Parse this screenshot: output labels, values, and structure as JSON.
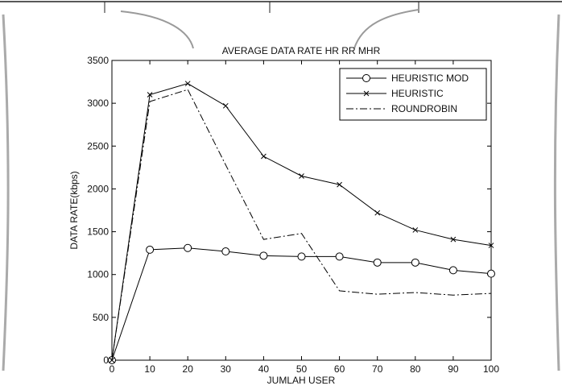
{
  "chart_data": {
    "type": "line",
    "title": "AVERAGE DATA RATE HR RR MHR",
    "xlabel": "JUMLAH USER",
    "ylabel": "DATA RATE(kbps)",
    "x": [
      0,
      10,
      20,
      30,
      40,
      50,
      60,
      70,
      80,
      90,
      100
    ],
    "xlim": [
      0,
      100
    ],
    "ylim": [
      0,
      3500
    ],
    "xticks": [
      "0",
      "10",
      "20",
      "30",
      "40",
      "50",
      "60",
      "70",
      "80",
      "90",
      "100"
    ],
    "yticks": [
      "0",
      "500",
      "1000",
      "1500",
      "2000",
      "2500",
      "3000",
      "3500"
    ],
    "grid": false,
    "legend_position": "top-right",
    "series": [
      {
        "name": "HEURISTIC MOD",
        "marker": "circle",
        "line_style": "solid",
        "values": [
          0,
          1290,
          1310,
          1270,
          1220,
          1210,
          1210,
          1140,
          1140,
          1050,
          1010
        ]
      },
      {
        "name": "HEURISTIC",
        "marker": "x",
        "line_style": "solid",
        "values": [
          0,
          3100,
          3230,
          2970,
          2380,
          2150,
          2050,
          1720,
          1520,
          1410,
          1340
        ]
      },
      {
        "name": "ROUNDROBIN",
        "marker": "none",
        "line_style": "dash-dot",
        "values": [
          0,
          3020,
          3160,
          2280,
          1410,
          1480,
          810,
          770,
          790,
          760,
          780
        ]
      }
    ]
  }
}
